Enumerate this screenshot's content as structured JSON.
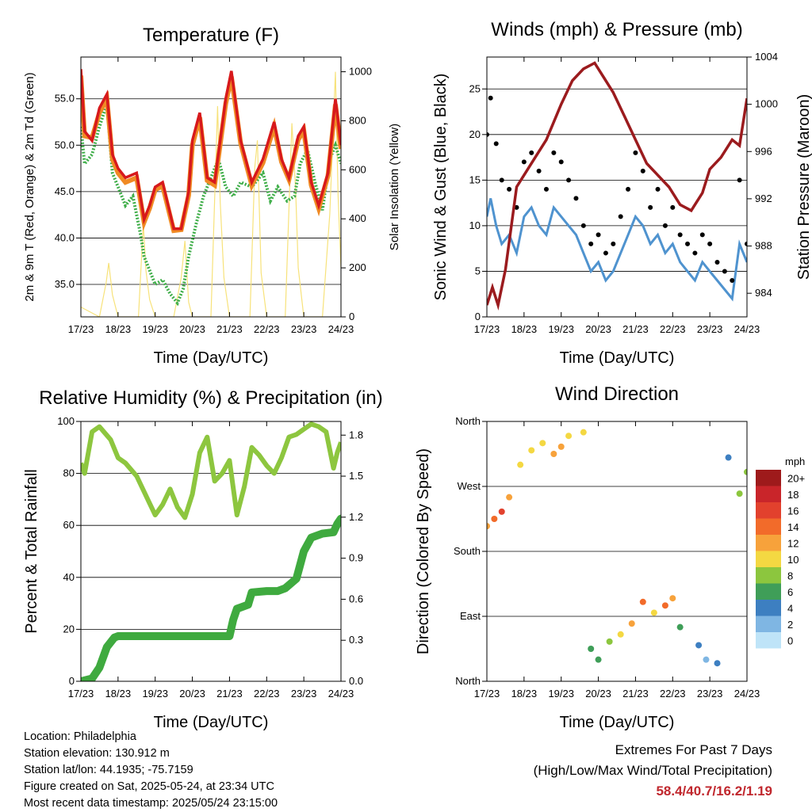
{
  "info": {
    "location": "Location: Philadelphia",
    "elevation": "Station elevation: 130.912 m",
    "latlon": "Station lat/lon: 44.1935; -75.7159",
    "created": "Figure created on Sat, 2025-05-24, at 23:34 UTC",
    "recent": "Most recent data timestamp: 2025/05/24 23:15:00"
  },
  "extremes": {
    "heading": "Extremes For Past 7 Days",
    "subheading": "(High/Low/Max Wind/Total Precipitation)",
    "values": "58.4/40.7/16.2/1.19"
  },
  "colors": {
    "temp_2m": "#d7191c",
    "temp_9m": "#f08a24",
    "dewpoint": "#3fae49",
    "insolation": "#f7e27a",
    "wind": "#4f93cf",
    "gust": "#000000",
    "pressure": "#9b1b1e",
    "rh": "#8dc63f",
    "precip": "#3faa3f"
  },
  "chart_data": [
    {
      "type": "line",
      "title": "Temperature (F)",
      "xlabel": "Time (Day/UTC)",
      "ylabel": "2m & 9m T (Red, Orange) & 2m Td (Green)",
      "ylabel_right": "Solar Insolation (Yellow)",
      "x_ticks": [
        "17/23",
        "18/23",
        "19/23",
        "20/23",
        "21/23",
        "22/23",
        "23/23",
        "24/23"
      ],
      "xlim": [
        0,
        7
      ],
      "ylim": [
        31.5,
        59.5
      ],
      "y_ticks": [
        "35.0",
        "40.0",
        "45.0",
        "50.0",
        "55.0"
      ],
      "y_tick_values": [
        35,
        40,
        45,
        50,
        55
      ],
      "ylim_right": [
        0,
        1060
      ],
      "y_ticks_right": [
        "0",
        "200",
        "400",
        "600",
        "800",
        "1000"
      ],
      "y_tick_values_right": [
        0,
        200,
        400,
        600,
        800,
        1000
      ],
      "series": [
        {
          "key": "temp_2m",
          "x": [
            0,
            0.1,
            0.3,
            0.5,
            0.7,
            0.85,
            1.0,
            1.2,
            1.5,
            1.7,
            1.85,
            2.0,
            2.2,
            2.5,
            2.7,
            2.9,
            3.0,
            3.2,
            3.4,
            3.6,
            3.9,
            4.05,
            4.3,
            4.6,
            4.9,
            5.2,
            5.4,
            5.6,
            5.85,
            6.0,
            6.2,
            6.4,
            6.65,
            6.85,
            7.0
          ],
          "y": [
            58.2,
            51.5,
            50.5,
            54.0,
            55.5,
            49.0,
            47.5,
            46.5,
            47.0,
            42.0,
            43.5,
            45.5,
            46.0,
            41.0,
            41.0,
            45.0,
            50.5,
            53.5,
            46.5,
            46.0,
            55.0,
            58.0,
            50.5,
            46.0,
            48.5,
            52.5,
            48.5,
            46.5,
            51.0,
            52.0,
            46.0,
            43.5,
            47.0,
            55.0,
            50.0
          ]
        },
        {
          "key": "temp_9m",
          "x": [
            0,
            0.1,
            0.3,
            0.5,
            0.7,
            0.85,
            1.0,
            1.2,
            1.5,
            1.7,
            1.85,
            2.0,
            2.2,
            2.5,
            2.7,
            2.9,
            3.0,
            3.2,
            3.4,
            3.6,
            3.9,
            4.05,
            4.3,
            4.6,
            4.9,
            5.2,
            5.4,
            5.6,
            5.85,
            6.0,
            6.2,
            6.4,
            6.65,
            6.85,
            7.0
          ],
          "y": [
            57.5,
            51.0,
            50.8,
            53.5,
            55.0,
            48.5,
            47.0,
            46.0,
            46.5,
            41.7,
            43.2,
            45.2,
            45.6,
            40.8,
            40.9,
            44.6,
            50.0,
            53.0,
            46.2,
            45.7,
            54.5,
            57.4,
            50.2,
            45.7,
            48.1,
            52.0,
            48.2,
            46.3,
            50.6,
            51.6,
            45.7,
            43.2,
            46.7,
            54.4,
            49.6
          ]
        },
        {
          "key": "dewpoint",
          "x": [
            0,
            0.1,
            0.3,
            0.5,
            0.7,
            0.85,
            1.0,
            1.2,
            1.4,
            1.6,
            1.7,
            1.85,
            2.0,
            2.2,
            2.4,
            2.6,
            2.75,
            2.9,
            3.1,
            3.3,
            3.5,
            3.7,
            3.9,
            4.1,
            4.3,
            4.6,
            4.9,
            5.1,
            5.3,
            5.55,
            5.75,
            5.9,
            6.1,
            6.3,
            6.5,
            6.7,
            6.85,
            7.0
          ],
          "y": [
            52.0,
            48.0,
            49.0,
            52.0,
            54.5,
            47.0,
            45.5,
            43.5,
            44.5,
            40.5,
            38.0,
            36.5,
            35.0,
            35.5,
            34.0,
            33.0,
            34.5,
            38.0,
            41.5,
            44.5,
            46.5,
            48.5,
            45.5,
            44.5,
            46.0,
            45.5,
            47.0,
            44.0,
            45.5,
            44.0,
            44.5,
            48.0,
            49.5,
            46.0,
            43.0,
            48.5,
            50.0,
            48.0
          ]
        },
        {
          "key": "insolation",
          "axis": "right",
          "x": [
            0,
            0.5,
            0.68,
            0.75,
            0.85,
            1.0,
            1.55,
            1.68,
            1.75,
            1.85,
            2.0,
            2.5,
            2.7,
            2.8,
            2.9,
            3.0,
            3.5,
            3.68,
            3.75,
            3.85,
            4.0,
            4.55,
            4.68,
            4.75,
            4.85,
            5.0,
            5.5,
            5.68,
            5.78,
            5.85,
            6.0,
            6.5,
            6.7,
            6.85,
            6.92,
            7.0
          ],
          "y": [
            40,
            0,
            140,
            220,
            90,
            0,
            0,
            380,
            190,
            70,
            0,
            0,
            160,
            310,
            60,
            0,
            0,
            860,
            470,
            160,
            0,
            0,
            610,
            720,
            180,
            0,
            0,
            790,
            520,
            200,
            0,
            0,
            420,
            1000,
            500,
            200
          ]
        }
      ]
    },
    {
      "type": "scatter",
      "title": "Winds (mph) & Pressure (mb)",
      "xlabel": "Time (Day/UTC)",
      "ylabel": "Sonic Wind & Gust (Blue, Black)",
      "ylabel_right": "Station Pressure (Maroon)",
      "x_ticks": [
        "17/23",
        "18/23",
        "19/23",
        "20/23",
        "21/23",
        "22/23",
        "23/23",
        "24/23"
      ],
      "xlim": [
        0,
        7
      ],
      "ylim": [
        0,
        28.5
      ],
      "y_ticks": [
        "0",
        "5",
        "10",
        "15",
        "20",
        "25"
      ],
      "y_tick_values": [
        0,
        5,
        10,
        15,
        20,
        25
      ],
      "ylim_right": [
        982,
        1004
      ],
      "y_ticks_right": [
        "984",
        "988",
        "992",
        "996",
        "1000",
        "1004"
      ],
      "y_tick_values_right": [
        984,
        988,
        992,
        996,
        1000,
        1004
      ],
      "series": [
        {
          "key": "wind",
          "x": [
            0,
            0.1,
            0.25,
            0.4,
            0.6,
            0.8,
            1.0,
            1.2,
            1.4,
            1.6,
            1.8,
            2.0,
            2.2,
            2.4,
            2.6,
            2.8,
            3.0,
            3.2,
            3.4,
            3.6,
            3.8,
            4.0,
            4.2,
            4.4,
            4.6,
            4.8,
            5.0,
            5.2,
            5.4,
            5.6,
            5.8,
            6.0,
            6.2,
            6.4,
            6.6,
            6.8,
            7.0
          ],
          "y": [
            11,
            13,
            10,
            8,
            9,
            7,
            11,
            12,
            10,
            9,
            12,
            11,
            10,
            9,
            7,
            5,
            6,
            4,
            5,
            7,
            9,
            11,
            10,
            8,
            9,
            7,
            8,
            6,
            5,
            4,
            6,
            5,
            4,
            3,
            2,
            8,
            6
          ]
        },
        {
          "key": "gust",
          "x": [
            0,
            0.1,
            0.25,
            0.4,
            0.6,
            0.8,
            1.0,
            1.2,
            1.4,
            1.6,
            1.8,
            2.0,
            2.2,
            2.4,
            2.6,
            2.8,
            3.0,
            3.2,
            3.4,
            3.6,
            3.8,
            4.0,
            4.2,
            4.4,
            4.6,
            4.8,
            5.0,
            5.2,
            5.4,
            5.6,
            5.8,
            6.0,
            6.2,
            6.4,
            6.6,
            6.8,
            7.0
          ],
          "y": [
            20,
            24,
            19,
            15,
            14,
            12,
            17,
            18,
            16,
            14,
            18,
            17,
            15,
            13,
            10,
            8,
            9,
            7,
            8,
            11,
            14,
            18,
            16,
            12,
            14,
            10,
            12,
            9,
            8,
            7,
            9,
            8,
            6,
            5,
            4,
            15,
            8
          ]
        },
        {
          "key": "pressure",
          "axis": "right",
          "x": [
            0,
            0.15,
            0.3,
            0.5,
            0.8,
            1.2,
            1.6,
            2.0,
            2.3,
            2.6,
            2.9,
            3.1,
            3.4,
            3.7,
            4.0,
            4.3,
            4.6,
            4.9,
            5.2,
            5.5,
            5.8,
            6.0,
            6.3,
            6.6,
            6.8,
            7.0
          ],
          "y": [
            983,
            984.5,
            983,
            986,
            993,
            995,
            997,
            1000,
            1002,
            1003,
            1003.5,
            1002.5,
            1001,
            999,
            997,
            995,
            994,
            993,
            991.5,
            991,
            992.5,
            994.5,
            995.5,
            997,
            996.5,
            1000.5
          ]
        }
      ]
    },
    {
      "type": "line",
      "title": "Relative Humidity (%) & Precipitation (in)",
      "xlabel": "Time (Day/UTC)",
      "ylabel": "Percent & Total Rainfall",
      "x_ticks": [
        "17/23",
        "18/23",
        "19/23",
        "20/23",
        "21/23",
        "22/23",
        "23/23",
        "24/23"
      ],
      "xlim": [
        0,
        7
      ],
      "ylim": [
        0,
        100
      ],
      "y_ticks": [
        "0",
        "20",
        "40",
        "60",
        "80",
        "100"
      ],
      "y_tick_values": [
        0,
        20,
        40,
        60,
        80,
        100
      ],
      "ylim_right": [
        0,
        1.9
      ],
      "y_ticks_right": [
        "0.0",
        "0.3",
        "0.6",
        "0.9",
        "1.2",
        "1.5",
        "1.8"
      ],
      "y_tick_values_right": [
        0,
        0.3,
        0.6,
        0.9,
        1.2,
        1.5,
        1.8
      ],
      "series": [
        {
          "key": "rh",
          "x": [
            0,
            0.1,
            0.3,
            0.5,
            0.8,
            1.0,
            1.2,
            1.5,
            1.8,
            2.0,
            2.2,
            2.4,
            2.6,
            2.8,
            3.0,
            3.2,
            3.4,
            3.6,
            3.8,
            4.0,
            4.2,
            4.4,
            4.6,
            4.8,
            5.0,
            5.2,
            5.4,
            5.6,
            5.8,
            6.0,
            6.2,
            6.4,
            6.6,
            6.8,
            6.9,
            7.0
          ],
          "y": [
            84,
            80,
            96,
            98,
            93,
            86,
            84,
            79,
            70,
            64,
            68,
            74,
            67,
            63,
            72,
            88,
            94,
            77,
            80,
            85,
            64,
            75,
            90,
            87,
            83,
            80,
            86,
            94,
            95,
            97,
            99,
            98,
            96,
            82,
            88,
            92
          ]
        },
        {
          "key": "precip",
          "axis": "right",
          "x": [
            0,
            0.3,
            0.5,
            0.7,
            0.9,
            1.0,
            1.2,
            4.0,
            4.1,
            4.2,
            4.5,
            4.6,
            5.0,
            5.3,
            5.5,
            5.8,
            6.0,
            6.2,
            6.5,
            6.8,
            6.9,
            7.0
          ],
          "y": [
            0,
            0.02,
            0.1,
            0.25,
            0.32,
            0.33,
            0.33,
            0.33,
            0.45,
            0.53,
            0.56,
            0.65,
            0.66,
            0.66,
            0.68,
            0.75,
            0.95,
            1.05,
            1.08,
            1.09,
            1.15,
            1.19
          ]
        }
      ]
    },
    {
      "type": "scatter",
      "title": "Wind Direction",
      "xlabel": "Time (Day/UTC)",
      "ylabel": "Direction (Colored By Speed)",
      "x_ticks": [
        "17/23",
        "18/23",
        "19/23",
        "20/23",
        "21/23",
        "22/23",
        "23/23",
        "24/23"
      ],
      "xlim": [
        0,
        7
      ],
      "ylim": [
        0,
        360
      ],
      "y_ticks": [
        "North",
        "East",
        "South",
        "West",
        "North"
      ],
      "y_tick_values": [
        0,
        90,
        180,
        270,
        360
      ],
      "legend": {
        "title": "mph",
        "labels": [
          "20+",
          "18",
          "16",
          "14",
          "12",
          "10",
          "8",
          "6",
          "4",
          "2",
          "0"
        ],
        "colors": [
          "#9e1a1b",
          "#c9252a",
          "#e2412d",
          "#f26b2a",
          "#f7a23b",
          "#f4d842",
          "#8cc63e",
          "#3f9e58",
          "#3d7fc1",
          "#7fb6e3",
          "#bfe4f8"
        ]
      },
      "series": [
        {
          "key": "direction_clusters",
          "x": [
            0,
            0.2,
            0.4,
            0.6,
            0.9,
            1.2,
            1.5,
            1.8,
            2.0,
            2.2,
            2.6,
            2.8,
            3.0,
            3.3,
            3.6,
            3.9,
            4.2,
            4.5,
            4.8,
            5.0,
            5.2,
            5.7,
            5.9,
            6.2,
            6.5,
            6.8,
            7.0
          ],
          "y": [
            215,
            225,
            235,
            255,
            300,
            320,
            330,
            315,
            325,
            340,
            345,
            45,
            30,
            55,
            65,
            80,
            110,
            95,
            105,
            115,
            75,
            50,
            30,
            25,
            310,
            260,
            290
          ],
          "speed": [
            12,
            14,
            16,
            11,
            10,
            9,
            10,
            12,
            11,
            10,
            9,
            6,
            5,
            7,
            9,
            12,
            13,
            10,
            13,
            12,
            5,
            3,
            2,
            3,
            4,
            7,
            8
          ]
        }
      ]
    }
  ]
}
